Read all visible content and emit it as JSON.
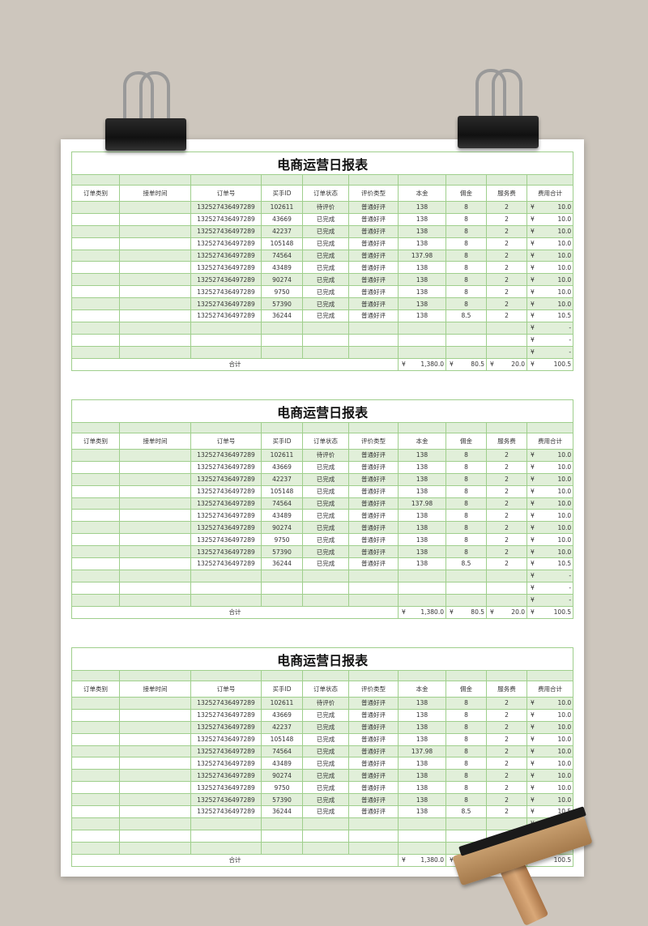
{
  "report": {
    "title": "电商运营日报表",
    "headers": [
      "订单类别",
      "接单时间",
      "订单号",
      "买手ID",
      "订单状态",
      "评价类型",
      "本金",
      "佣金",
      "服务费",
      "费用合计"
    ],
    "currency": "¥",
    "rows": [
      {
        "order_no": "132527436497289",
        "buyer_id": "102611",
        "status": "待评价",
        "review": "普通好评",
        "principal": "138",
        "commission": "8",
        "fee": "2",
        "total": "10.0"
      },
      {
        "order_no": "132527436497289",
        "buyer_id": "43669",
        "status": "已完成",
        "review": "普通好评",
        "principal": "138",
        "commission": "8",
        "fee": "2",
        "total": "10.0"
      },
      {
        "order_no": "132527436497289",
        "buyer_id": "42237",
        "status": "已完成",
        "review": "普通好评",
        "principal": "138",
        "commission": "8",
        "fee": "2",
        "total": "10.0"
      },
      {
        "order_no": "132527436497289",
        "buyer_id": "105148",
        "status": "已完成",
        "review": "普通好评",
        "principal": "138",
        "commission": "8",
        "fee": "2",
        "total": "10.0"
      },
      {
        "order_no": "132527436497289",
        "buyer_id": "74564",
        "status": "已完成",
        "review": "普通好评",
        "principal": "137.98",
        "commission": "8",
        "fee": "2",
        "total": "10.0"
      },
      {
        "order_no": "132527436497289",
        "buyer_id": "43489",
        "status": "已完成",
        "review": "普通好评",
        "principal": "138",
        "commission": "8",
        "fee": "2",
        "total": "10.0"
      },
      {
        "order_no": "132527436497289",
        "buyer_id": "90274",
        "status": "已完成",
        "review": "普通好评",
        "principal": "138",
        "commission": "8",
        "fee": "2",
        "total": "10.0"
      },
      {
        "order_no": "132527436497289",
        "buyer_id": "9750",
        "status": "已完成",
        "review": "普通好评",
        "principal": "138",
        "commission": "8",
        "fee": "2",
        "total": "10.0"
      },
      {
        "order_no": "132527436497289",
        "buyer_id": "57390",
        "status": "已完成",
        "review": "普通好评",
        "principal": "138",
        "commission": "8",
        "fee": "2",
        "total": "10.0"
      },
      {
        "order_no": "132527436497289",
        "buyer_id": "36244",
        "status": "已完成",
        "review": "普通好评",
        "principal": "138",
        "commission": "8.5",
        "fee": "2",
        "total": "10.5"
      },
      {
        "order_no": "",
        "buyer_id": "",
        "status": "",
        "review": "",
        "principal": "",
        "commission": "",
        "fee": "",
        "total": "-"
      },
      {
        "order_no": "",
        "buyer_id": "",
        "status": "",
        "review": "",
        "principal": "",
        "commission": "",
        "fee": "",
        "total": "-"
      },
      {
        "order_no": "",
        "buyer_id": "",
        "status": "",
        "review": "",
        "principal": "",
        "commission": "",
        "fee": "",
        "total": "-"
      }
    ],
    "totals": {
      "label": "合计",
      "principal": "1,380.0",
      "commission": "80.5",
      "fee": "20.0",
      "total": "100.5"
    }
  },
  "sheet_count": 3,
  "colors": {
    "row_alt": "#e1efd9",
    "border": "#9fcf8c",
    "background": "#cdc6bd"
  }
}
